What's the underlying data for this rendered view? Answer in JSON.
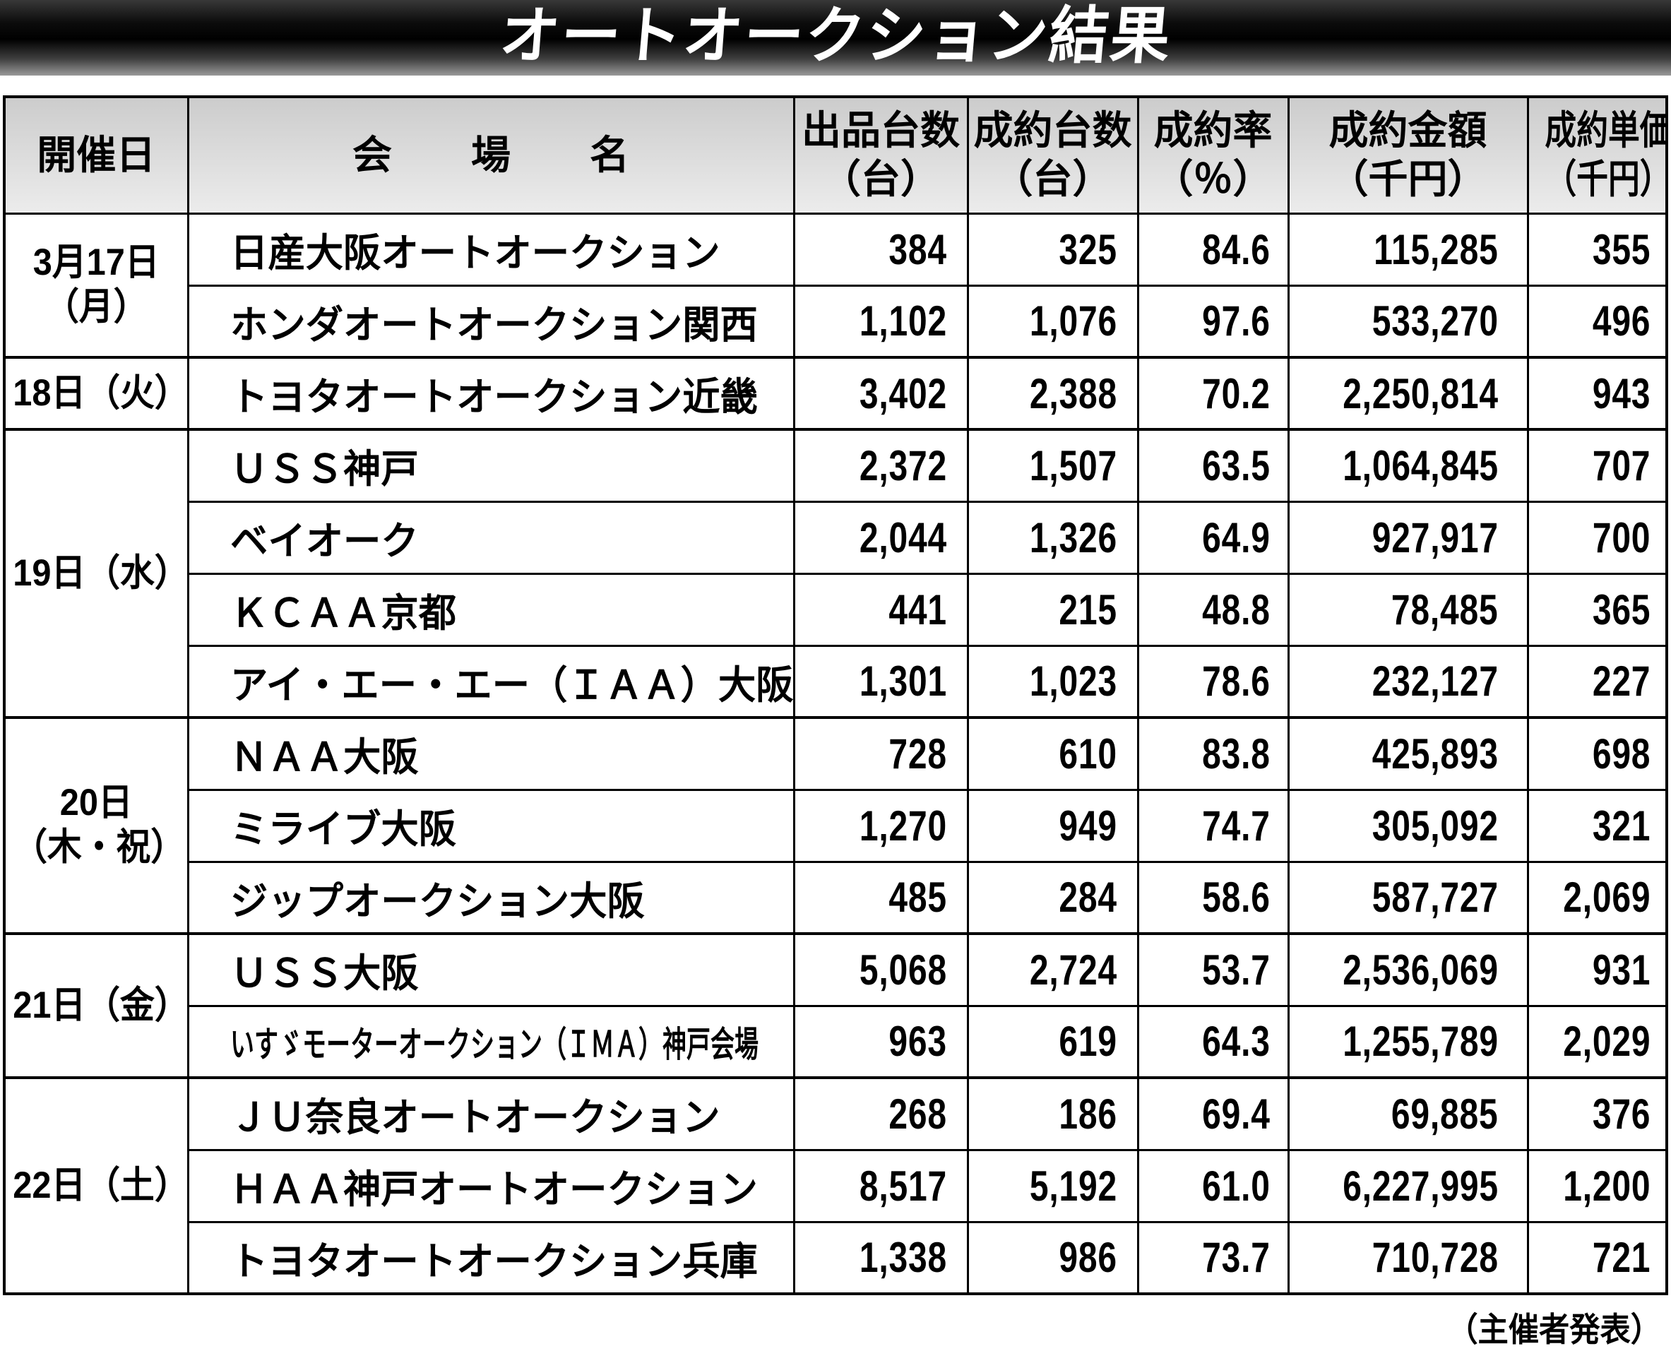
{
  "title": "オートオークション結果",
  "footer_note": "（主催者発表）",
  "colors": {
    "banner_gradient_top": "#383838",
    "banner_gradient_mid": "#000000",
    "banner_bottom_edge": "#9a9a9a",
    "banner_text": "#ffffff",
    "header_gradient_top": "#cccccc",
    "header_gradient_bottom": "#ececec",
    "table_border": "#000000",
    "cell_text": "#000000",
    "page_background": "#ffffff"
  },
  "table": {
    "columns": [
      {
        "label": "開催日",
        "unit": ""
      },
      {
        "label": "会　　場　　名",
        "unit": ""
      },
      {
        "label": "出品台数",
        "unit": "（台）"
      },
      {
        "label": "成約台数",
        "unit": "（台）"
      },
      {
        "label": "成約率",
        "unit": "（％）"
      },
      {
        "label": "成約金額",
        "unit": "（千円）"
      },
      {
        "label": "成約単価",
        "unit": "（千円）"
      }
    ],
    "groups": [
      {
        "date_lines": [
          "3月17日",
          "（月）"
        ],
        "rows": [
          {
            "venue": "日産大阪オートオークション",
            "listed": "384",
            "sold": "325",
            "rate": "84.6",
            "amount": "115,285",
            "unit": "355"
          },
          {
            "venue": "ホンダオートオークション関西",
            "listed": "1,102",
            "sold": "1,076",
            "rate": "97.6",
            "amount": "533,270",
            "unit": "496"
          }
        ]
      },
      {
        "date_lines": [
          "18日（火）"
        ],
        "rows": [
          {
            "venue": "トヨタオートオークション近畿",
            "listed": "3,402",
            "sold": "2,388",
            "rate": "70.2",
            "amount": "2,250,814",
            "unit": "943"
          }
        ]
      },
      {
        "date_lines": [
          "19日（水）"
        ],
        "rows": [
          {
            "venue": "ＵＳＳ神戸",
            "listed": "2,372",
            "sold": "1,507",
            "rate": "63.5",
            "amount": "1,064,845",
            "unit": "707"
          },
          {
            "venue": "ベイオーク",
            "listed": "2,044",
            "sold": "1,326",
            "rate": "64.9",
            "amount": "927,917",
            "unit": "700"
          },
          {
            "venue": "ＫＣＡＡ京都",
            "listed": "441",
            "sold": "215",
            "rate": "48.8",
            "amount": "78,485",
            "unit": "365"
          },
          {
            "venue": "アイ・エー・エー（ＩＡＡ）大阪",
            "listed": "1,301",
            "sold": "1,023",
            "rate": "78.6",
            "amount": "232,127",
            "unit": "227"
          }
        ]
      },
      {
        "date_lines": [
          "20日",
          "（木・祝）"
        ],
        "rows": [
          {
            "venue": "ＮＡＡ大阪",
            "listed": "728",
            "sold": "610",
            "rate": "83.8",
            "amount": "425,893",
            "unit": "698"
          },
          {
            "venue": "ミライブ大阪",
            "listed": "1,270",
            "sold": "949",
            "rate": "74.7",
            "amount": "305,092",
            "unit": "321"
          },
          {
            "venue": "ジップオークション大阪",
            "listed": "485",
            "sold": "284",
            "rate": "58.6",
            "amount": "587,727",
            "unit": "2,069"
          }
        ]
      },
      {
        "date_lines": [
          "21日（金）"
        ],
        "rows": [
          {
            "venue": "ＵＳＳ大阪",
            "listed": "5,068",
            "sold": "2,724",
            "rate": "53.7",
            "amount": "2,536,069",
            "unit": "931"
          },
          {
            "venue": "いすゞモーターオークション（ＩＭＡ）神戸会場",
            "condensed": true,
            "listed": "963",
            "sold": "619",
            "rate": "64.3",
            "amount": "1,255,789",
            "unit": "2,029"
          }
        ]
      },
      {
        "date_lines": [
          "22日（土）"
        ],
        "rows": [
          {
            "venue": "ＪＵ奈良オートオークション",
            "listed": "268",
            "sold": "186",
            "rate": "69.4",
            "amount": "69,885",
            "unit": "376"
          },
          {
            "venue": "ＨＡＡ神戸オートオークション",
            "listed": "8,517",
            "sold": "5,192",
            "rate": "61.0",
            "amount": "6,227,995",
            "unit": "1,200"
          },
          {
            "venue": "トヨタオートオークション兵庫",
            "listed": "1,338",
            "sold": "986",
            "rate": "73.7",
            "amount": "710,728",
            "unit": "721"
          }
        ]
      }
    ]
  }
}
